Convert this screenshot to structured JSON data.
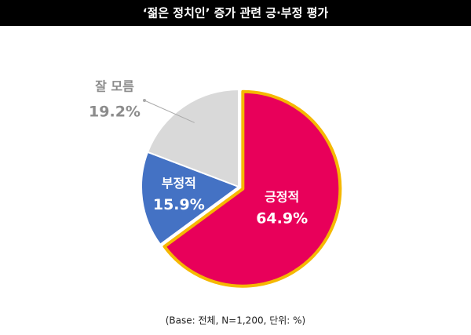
{
  "chart_data": {
    "type": "pie",
    "title": "‘젊은 정치인’ 증가 관련 긍·부정 평가",
    "categories": [
      "긍정적",
      "부정적",
      "잘 모름"
    ],
    "values": [
      64.9,
      15.9,
      19.2
    ],
    "value_labels": [
      "64.9%",
      "15.9%",
      "19.2%"
    ],
    "colors": [
      "#e8005a",
      "#4472c4",
      "#d9d9d9"
    ],
    "edge_colors": [
      "#f5b800",
      "#ffffff",
      "#ffffff"
    ],
    "note": "(Base: 전체, N=1,200, 단위: %)"
  }
}
